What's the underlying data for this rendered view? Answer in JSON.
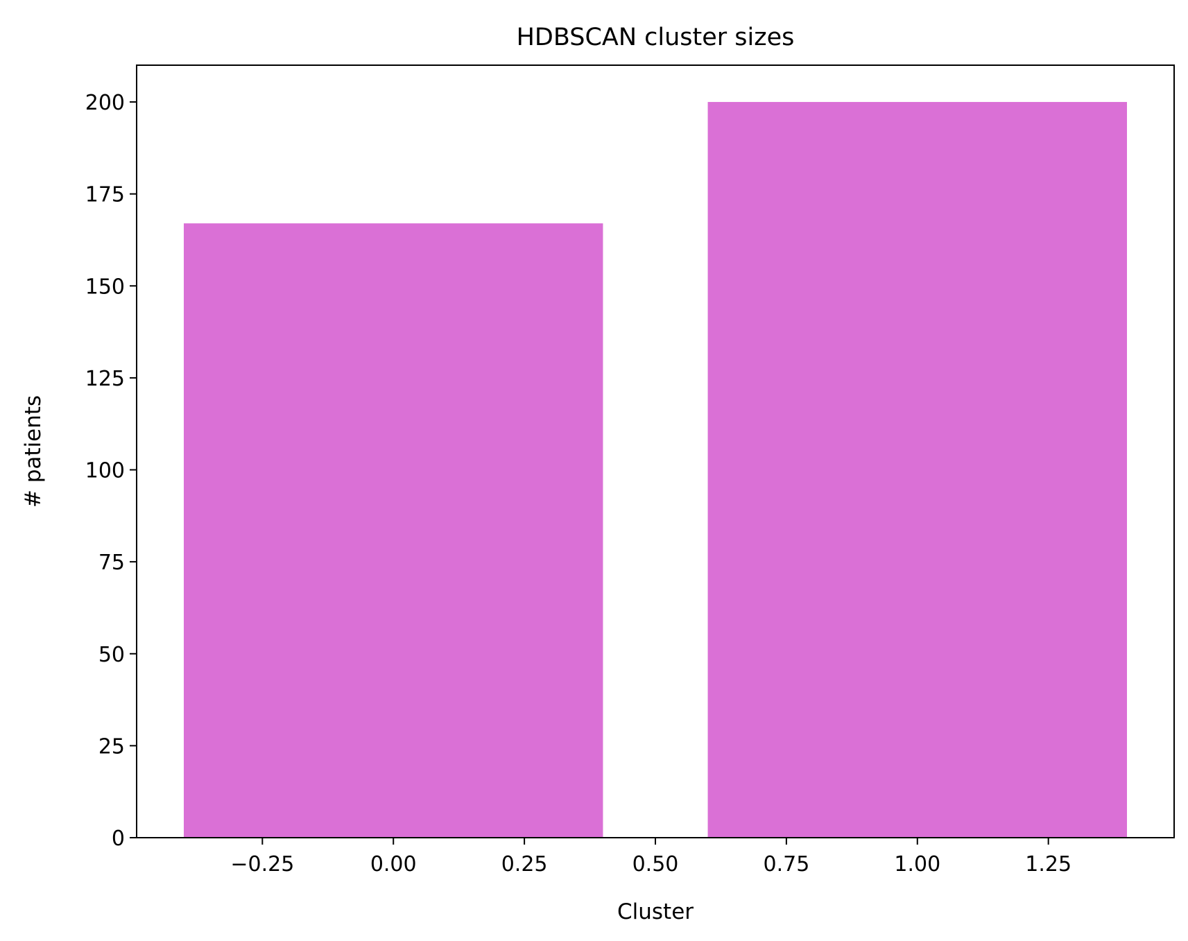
{
  "chart_data": {
    "type": "bar",
    "title": "HDBSCAN cluster sizes",
    "xlabel": "Cluster",
    "ylabel": "# patients",
    "bar_color": "#da70d6",
    "x": [
      0,
      1
    ],
    "values": [
      167,
      200
    ],
    "bar_width": 0.8,
    "xlim": [
      -0.49,
      1.49
    ],
    "ylim": [
      0,
      210
    ],
    "xticks": [
      -0.25,
      0.0,
      0.25,
      0.5,
      0.75,
      1.0,
      1.25
    ],
    "xtick_labels": [
      "−0.25",
      "0.00",
      "0.25",
      "0.50",
      "0.75",
      "1.00",
      "1.25"
    ],
    "yticks": [
      0,
      25,
      50,
      75,
      100,
      125,
      150,
      175,
      200
    ],
    "ytick_labels": [
      "0",
      "25",
      "50",
      "75",
      "100",
      "125",
      "150",
      "175",
      "200"
    ],
    "grid": false,
    "legend": "none"
  }
}
